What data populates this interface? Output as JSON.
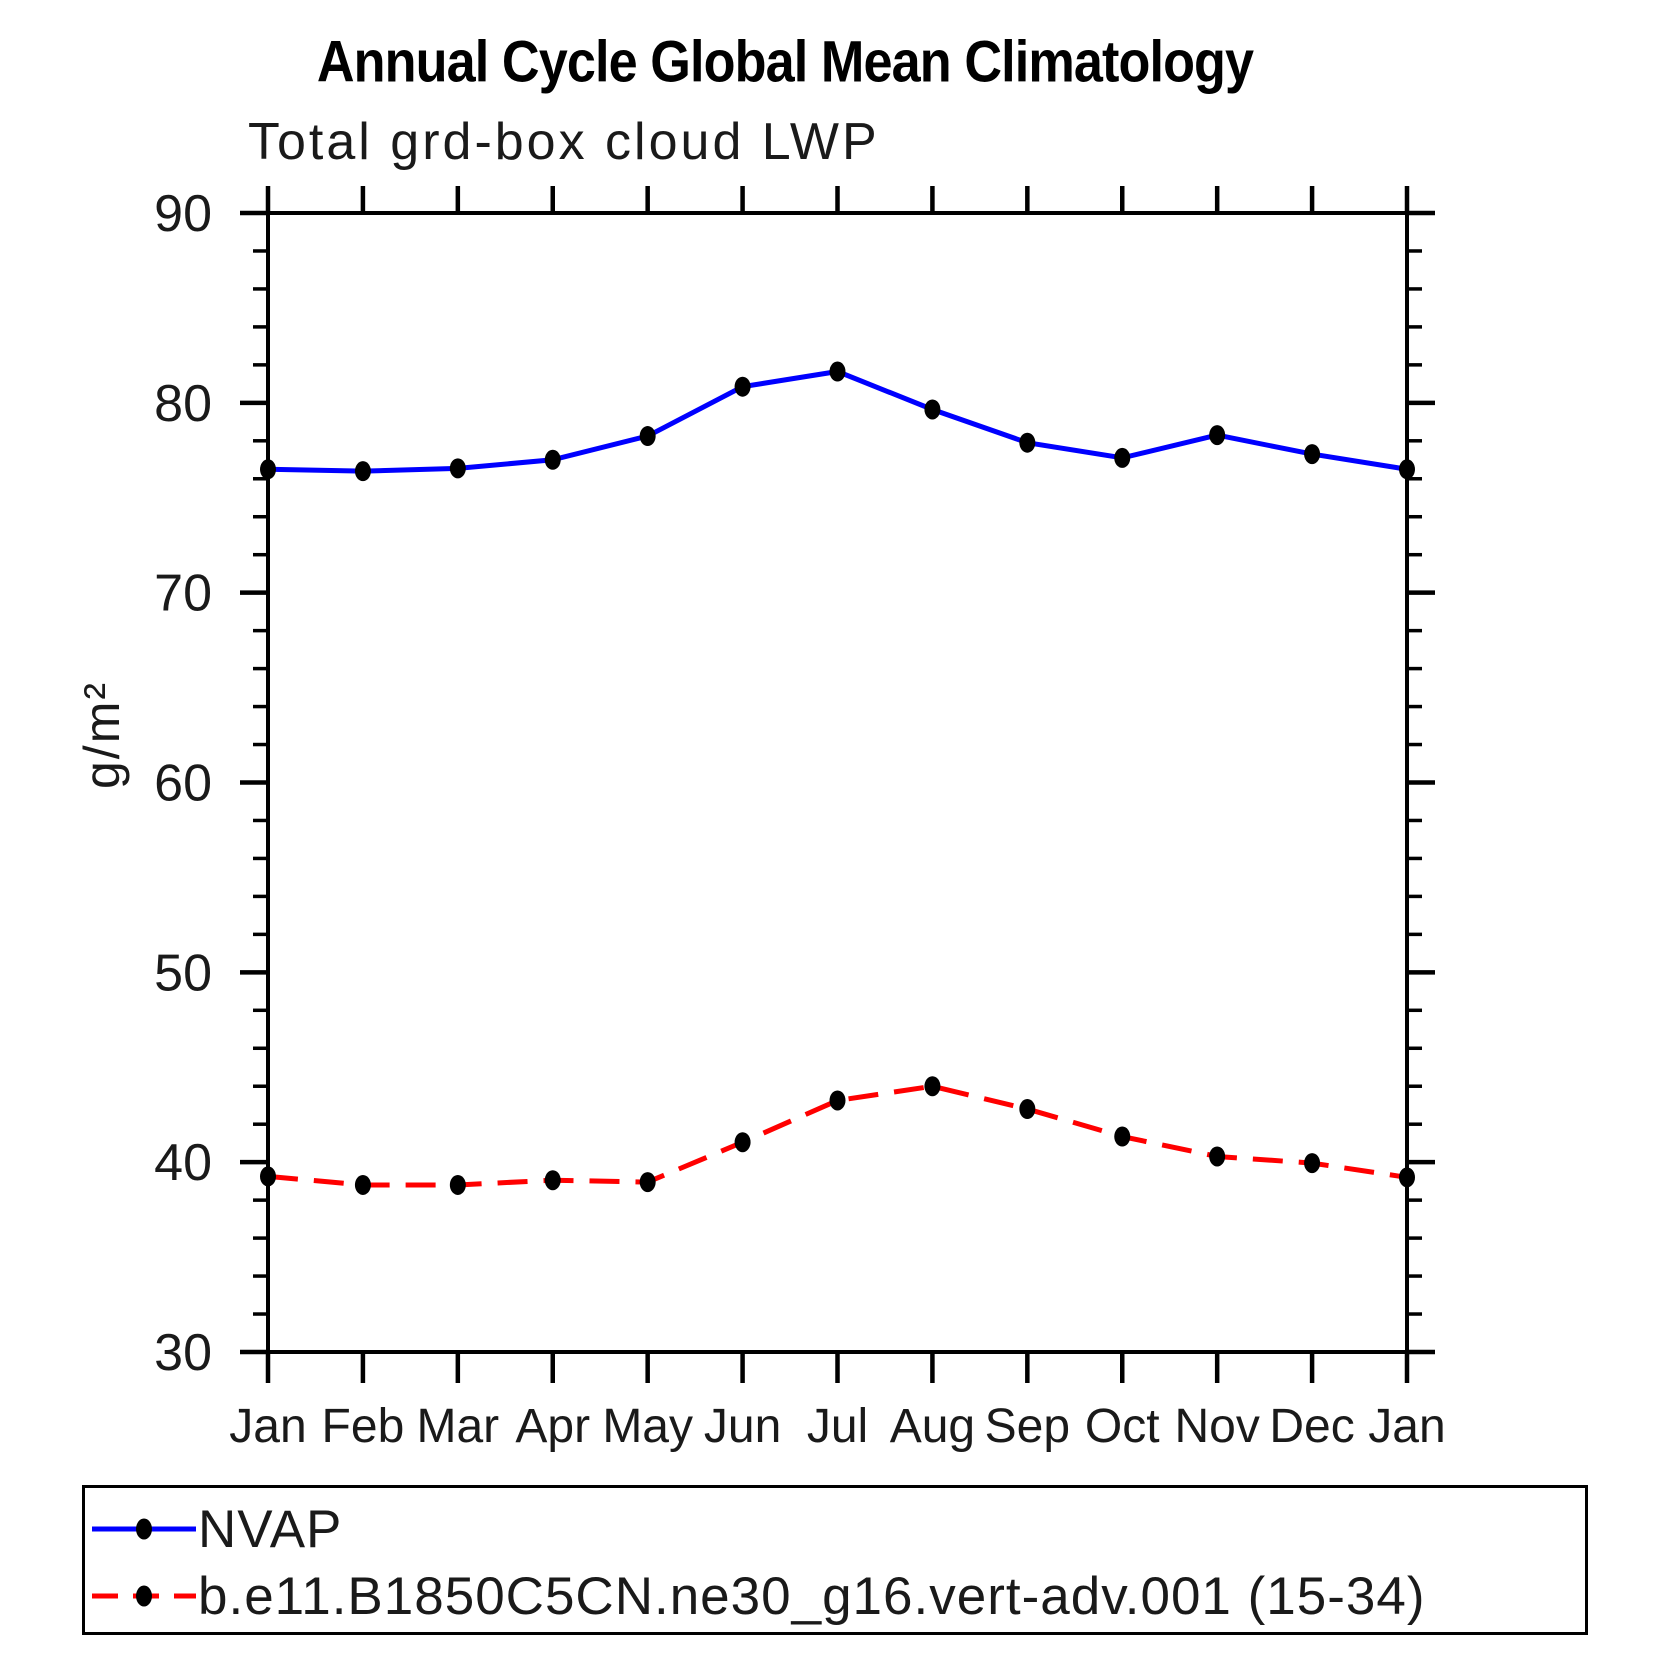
{
  "chart_data": {
    "type": "line",
    "title": "Annual Cycle Global Mean Climatology",
    "subtitle": "Total grd-box cloud LWP",
    "ylabel": "g/m²",
    "xlabel": "",
    "ylim": [
      30,
      90
    ],
    "ytick_step_major": 10,
    "ytick_step_minor": 2,
    "ytick_labels": [
      "30",
      "40",
      "50",
      "60",
      "70",
      "80",
      "90"
    ],
    "categories": [
      "Jan",
      "Feb",
      "Mar",
      "Apr",
      "May",
      "Jun",
      "Jul",
      "Aug",
      "Sep",
      "Oct",
      "Nov",
      "Dec",
      "Jan"
    ],
    "grid": false,
    "frame": true,
    "legend_position": "bottom-left-box",
    "marker_color": "#000000",
    "axis_color": "#000000",
    "series": [
      {
        "name": "NVAP",
        "color": "#0000ff",
        "line_style": "solid",
        "marker": "filled-circle",
        "values": [
          76.5,
          76.4,
          76.55,
          77.0,
          78.25,
          80.85,
          81.65,
          79.65,
          77.9,
          77.1,
          78.3,
          77.3,
          76.5
        ]
      },
      {
        "name": "b.e11.B1850C5CN.ne30_g16.vert-adv.001 (15-34)",
        "color": "#ff0000",
        "line_style": "dashed",
        "marker": "filled-circle",
        "values": [
          39.25,
          38.8,
          38.8,
          39.05,
          38.95,
          41.05,
          43.25,
          44.0,
          42.8,
          41.35,
          40.3,
          39.95,
          39.2
        ]
      }
    ]
  }
}
